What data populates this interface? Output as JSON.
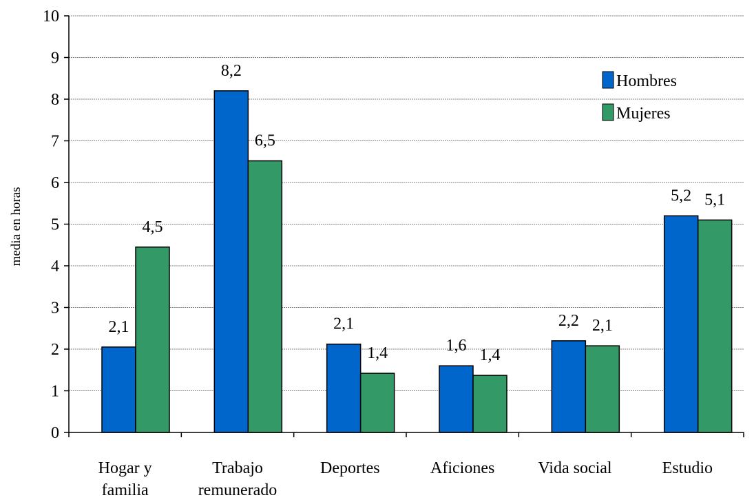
{
  "chart_data": {
    "type": "bar",
    "ylabel": "media en horas",
    "xlabel": "",
    "ylim": [
      0,
      10
    ],
    "yticks": [
      "0",
      "1",
      "2",
      "3",
      "4",
      "5",
      "6",
      "7",
      "8",
      "9",
      "10"
    ],
    "grid": true,
    "legend_position": "top-right",
    "categories": [
      [
        "Hogar y",
        "familia"
      ],
      [
        "Trabajo",
        "remunerado"
      ],
      [
        "Deportes"
      ],
      [
        "Aficiones"
      ],
      [
        "Vida social"
      ],
      [
        "Estudio"
      ]
    ],
    "series": [
      {
        "name": "Hombres",
        "color": "#0066CC",
        "values": [
          2.05,
          8.2,
          2.12,
          1.6,
          2.2,
          5.2
        ],
        "labels": [
          "2,1",
          "8,2",
          "2,1",
          "1,6",
          "2,2",
          "5,2"
        ]
      },
      {
        "name": "Mujeres",
        "color": "#339966",
        "values": [
          4.45,
          6.52,
          1.42,
          1.37,
          2.08,
          5.1
        ],
        "labels": [
          "4,5",
          "6,5",
          "1,4",
          "1,4",
          "2,1",
          "5,1"
        ]
      }
    ]
  }
}
